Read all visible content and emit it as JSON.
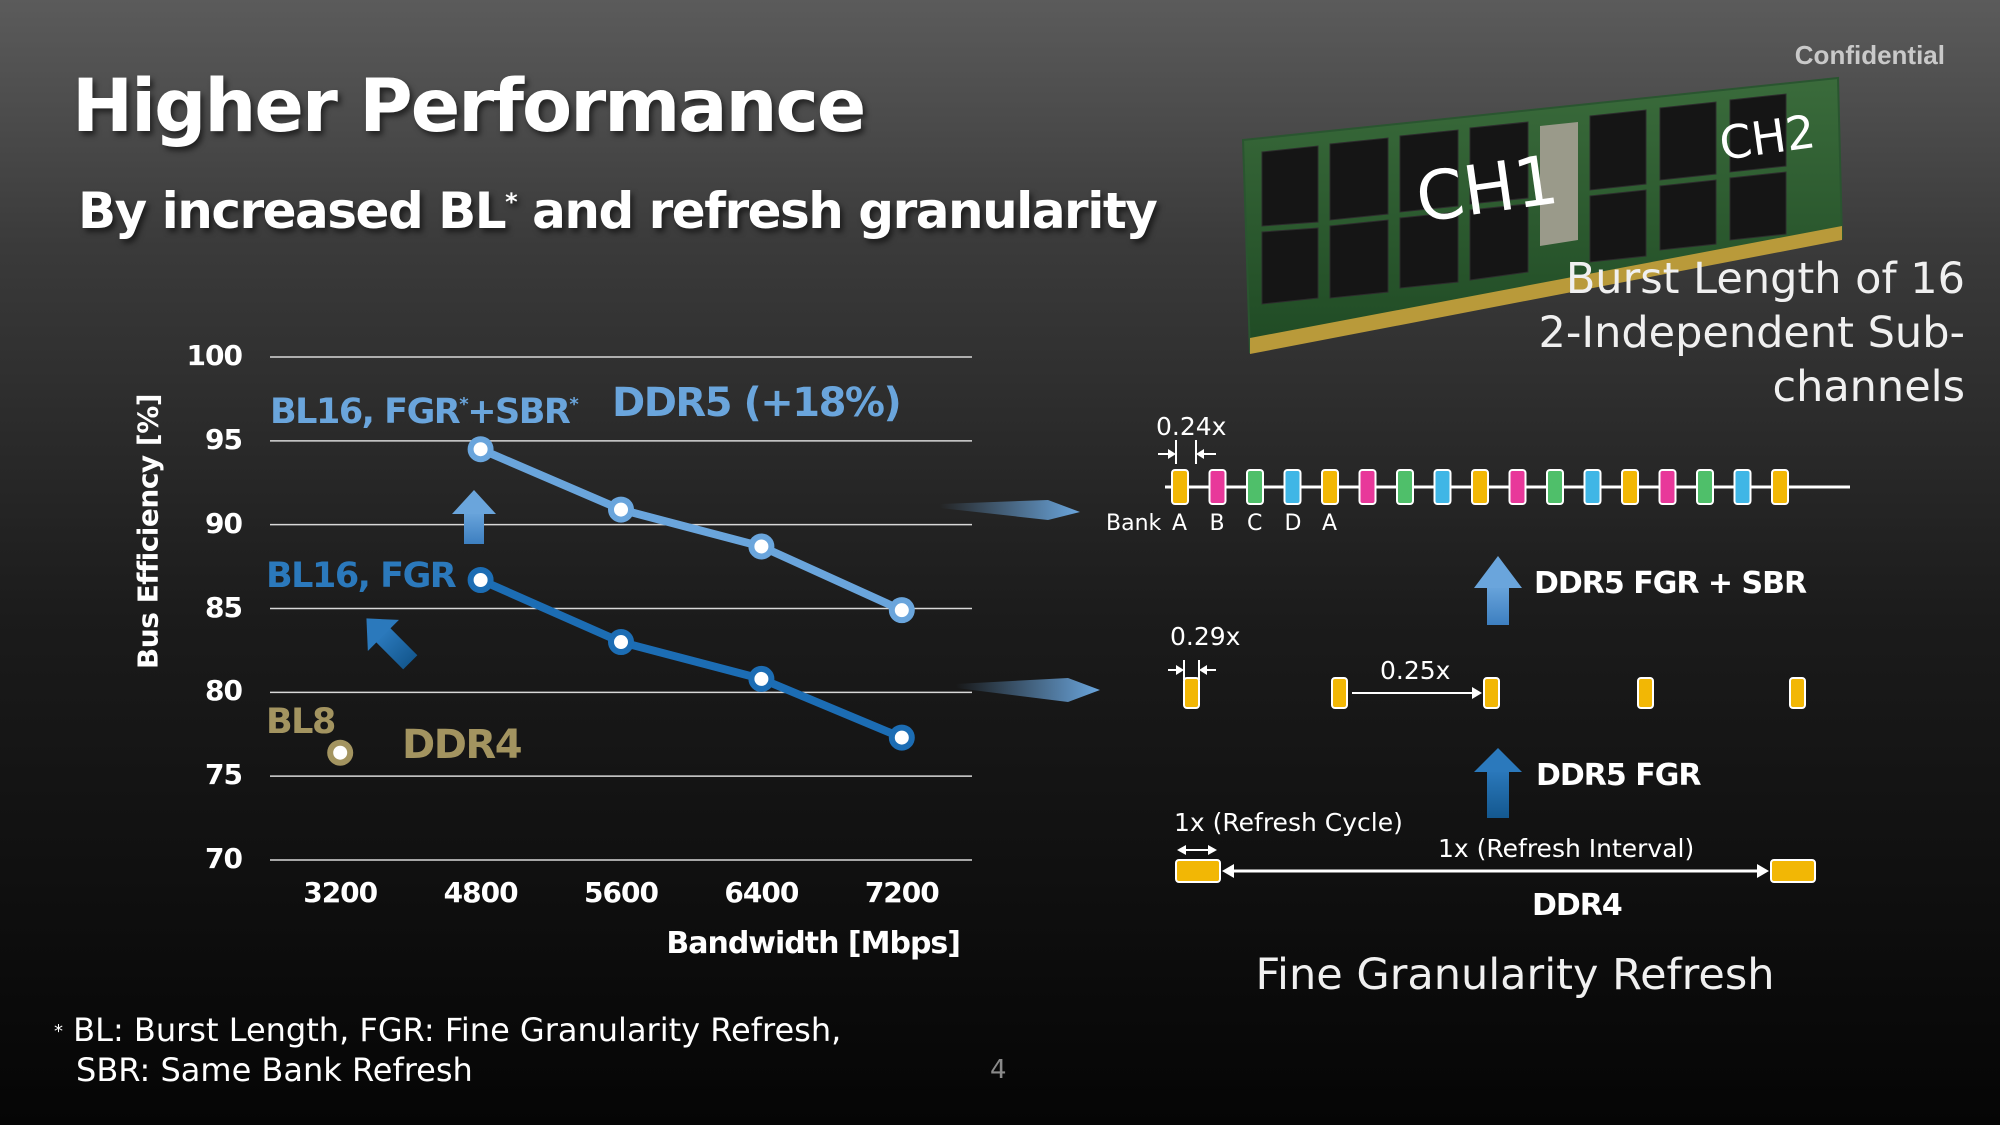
{
  "confidential": "Confidential",
  "title": "Higher Performance",
  "subtitle": {
    "before": "By increased BL",
    "star": "*",
    "after": " and refresh granularity"
  },
  "module": {
    "ch1": "CH1",
    "ch2": "CH2",
    "burst_line1": "Burst Length of 16",
    "burst_line2": "2-Independent Sub-channels"
  },
  "chart_data": {
    "type": "line",
    "xlabel": "Bandwidth [Mbps]",
    "ylabel": "Bus Efficiency [%]",
    "categories": [
      "3200",
      "4800",
      "5600",
      "6400",
      "7200"
    ],
    "y_ticks": [
      "100",
      "95",
      "90",
      "85",
      "80",
      "75",
      "70"
    ],
    "ylim": [
      70,
      100
    ],
    "grid": "horizontal",
    "series": [
      {
        "name": "BL16, FGR*+SBR*",
        "label_main": "BL16, FGR",
        "label_mid": "+SBR",
        "color": "#6aa5dc",
        "x": [
          "4800",
          "5600",
          "6400",
          "7200"
        ],
        "values": [
          94.5,
          90.9,
          88.7,
          84.9
        ]
      },
      {
        "name": "BL16, FGR",
        "label_main": "BL16, FGR",
        "color": "#1c6db4",
        "x": [
          "4800",
          "5600",
          "6400",
          "7200"
        ],
        "values": [
          86.7,
          83.0,
          80.8,
          77.3
        ]
      },
      {
        "name": "BL8",
        "label_main": "BL8",
        "color": "#a39460",
        "x": [
          "3200"
        ],
        "values": [
          76.4
        ]
      }
    ],
    "annotations": {
      "ddr5": "DDR5 (+18%)",
      "ddr4": "DDR4"
    }
  },
  "fgr": {
    "timing_sbr": "0.24x",
    "bank_label": "Bank",
    "banks": [
      "A",
      "B",
      "C",
      "D",
      "A"
    ],
    "label_sbr": "DDR5 FGR + SBR",
    "timing_fgr_cycle": "0.29x",
    "timing_fgr_interval": "0.25x",
    "label_fgr": "DDR5 FGR",
    "refresh_cycle": "1x (Refresh Cycle)",
    "refresh_interval": "1x (Refresh Interval)",
    "label_ddr4": "DDR4",
    "title": "Fine Granularity Refresh",
    "colors": {
      "yellow": "#f2b705",
      "pink": "#e8389a",
      "green": "#4fbf6a",
      "cyan": "#3fb6e6"
    }
  },
  "footnote": {
    "star": "*",
    "line1": " BL: Burst Length,  FGR:  Fine Granularity Refresh,",
    "line2": "SBR: Same Bank Refresh"
  },
  "page_number": "4"
}
